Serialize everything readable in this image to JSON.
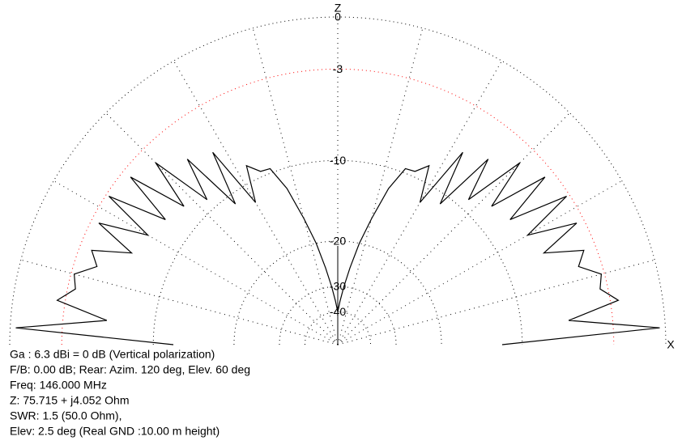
{
  "chart_data": {
    "type": "polar",
    "axis_labels": {
      "vertical": "Z",
      "horizontal": "X"
    },
    "radial_scale": "log",
    "rlim": [
      -40,
      0
    ],
    "rticks": [
      0,
      -3,
      -10,
      -20,
      -30,
      -40
    ],
    "grid_colors": [
      "#000000",
      "#ff0000",
      "#000000",
      "#000000",
      "#000000",
      "#000000"
    ],
    "grid": true,
    "series": [
      {
        "color": "#000000",
        "x": [
          0,
          3,
          6,
          9,
          12,
          15,
          18,
          21,
          24,
          27,
          30,
          33,
          36,
          39,
          42,
          45,
          48,
          51,
          54,
          57,
          60,
          63,
          66,
          69,
          72,
          75,
          78,
          81,
          84,
          87,
          90,
          93,
          96,
          99,
          102,
          105,
          108,
          111,
          114,
          117,
          120,
          123,
          126,
          129,
          132,
          135,
          138,
          141,
          144,
          147,
          150,
          153,
          156,
          159,
          162,
          165,
          168,
          171,
          174,
          177,
          180
        ],
        "values": [
          -12,
          -0.3,
          -6,
          -2.5,
          -3.5,
          -3.2,
          -4.5,
          -3.8,
          -6.5,
          -3.5,
          -7,
          -3.2,
          -7.5,
          -3.6,
          -8,
          -4.2,
          -9,
          -5.5,
          -11,
          -6.2,
          -12,
          -8.5,
          -9.5,
          -9.6,
          -12,
          -16,
          -20,
          -25,
          -30,
          -35,
          -40,
          -35,
          -30,
          -25,
          -20,
          -16,
          -12,
          -9.6,
          -9.5,
          -8.5,
          -12,
          -6.2,
          -11,
          -5.5,
          -9,
          -4.2,
          -8,
          -3.6,
          -7.5,
          -3.2,
          -7,
          -3.5,
          -6.5,
          -3.8,
          -4.5,
          -3.2,
          -3.5,
          -2.5,
          -6,
          -0.3,
          -12
        ]
      }
    ],
    "info": [
      "Ga : 6.3 dBi = 0 dB  (Vertical polarization)",
      "F/B: 0.00 dB; Rear: Azim. 120 deg,  Elev. 60 deg",
      "Freq: 146.000 MHz",
      "Z: 75.715 + j4.052 Ohm",
      "SWR: 1.5 (50.0 Ohm),",
      "Elev: 2.5 deg (Real GND  :10.00 m height)"
    ]
  }
}
